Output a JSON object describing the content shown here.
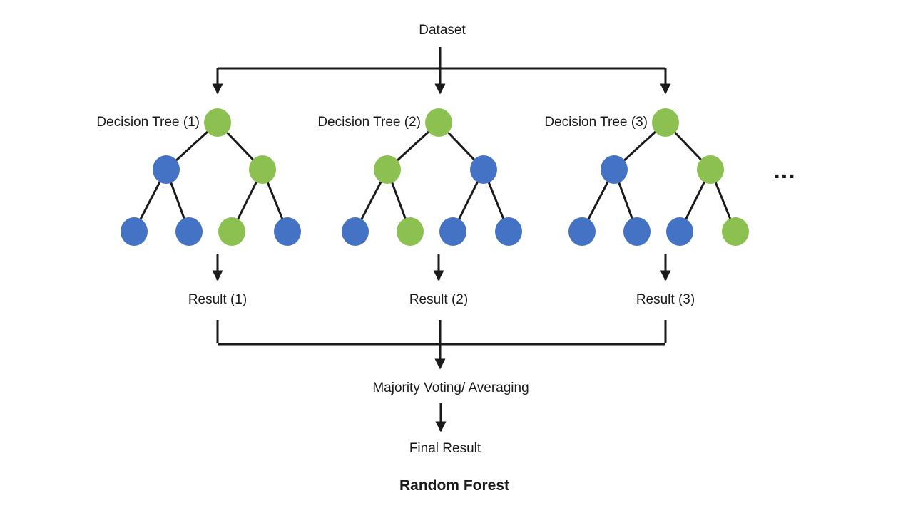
{
  "colors": {
    "green": "#8CC152",
    "blue": "#4472C4",
    "line": "#1a1a1a"
  },
  "dataset_label": "Dataset",
  "trees": [
    {
      "label": "Decision Tree (1)",
      "result_label": "Result (1)",
      "nodes": {
        "root": "green",
        "level2": [
          "blue",
          "green"
        ],
        "leaves": [
          "blue",
          "blue",
          "green",
          "blue"
        ]
      }
    },
    {
      "label": "Decision Tree (2)",
      "result_label": "Result (2)",
      "nodes": {
        "root": "green",
        "level2": [
          "green",
          "blue"
        ],
        "leaves": [
          "blue",
          "green",
          "blue",
          "blue"
        ]
      }
    },
    {
      "label": "Decision Tree (3)",
      "result_label": "Result (3)",
      "nodes": {
        "root": "green",
        "level2": [
          "blue",
          "green"
        ],
        "leaves": [
          "blue",
          "blue",
          "blue",
          "green"
        ]
      }
    }
  ],
  "more_trees_label": "...",
  "aggregation_label": "Majority Voting/ Averaging",
  "final_result_label": "Final Result",
  "title": "Random Forest"
}
